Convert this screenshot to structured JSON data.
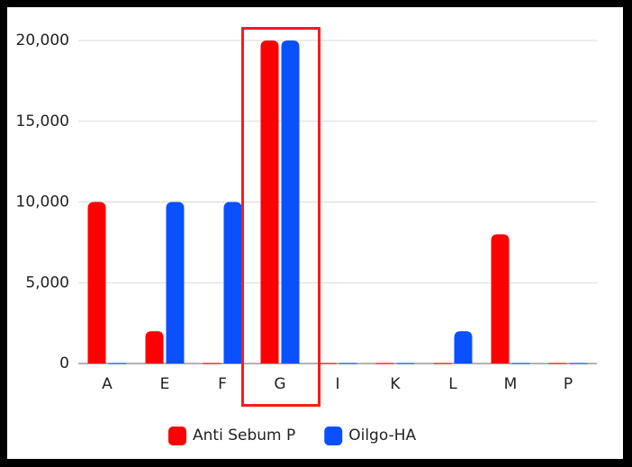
{
  "chart_data": {
    "type": "bar",
    "categories": [
      "A",
      "E",
      "F",
      "G",
      "I",
      "K",
      "L",
      "M",
      "P"
    ],
    "series": [
      {
        "name": "Anti Sebum P",
        "color": "#ff0000",
        "values": [
          10000,
          2000,
          0,
          20000,
          0,
          0,
          0,
          8000,
          0
        ]
      },
      {
        "name": "Oilgo-HA",
        "color": "#0a50ff",
        "values": [
          0,
          10000,
          10000,
          20000,
          0,
          0,
          2000,
          0,
          0
        ]
      }
    ],
    "ylim": [
      0,
      20000
    ],
    "yticks": [
      0,
      {
        "value": 5000,
        "label": "5,000"
      },
      {
        "value": 10000,
        "label": "10,000"
      },
      {
        "value": 15000,
        "label": "15,000"
      },
      {
        "value": 20000,
        "label": "20,000"
      }
    ],
    "grid": true
  }
}
